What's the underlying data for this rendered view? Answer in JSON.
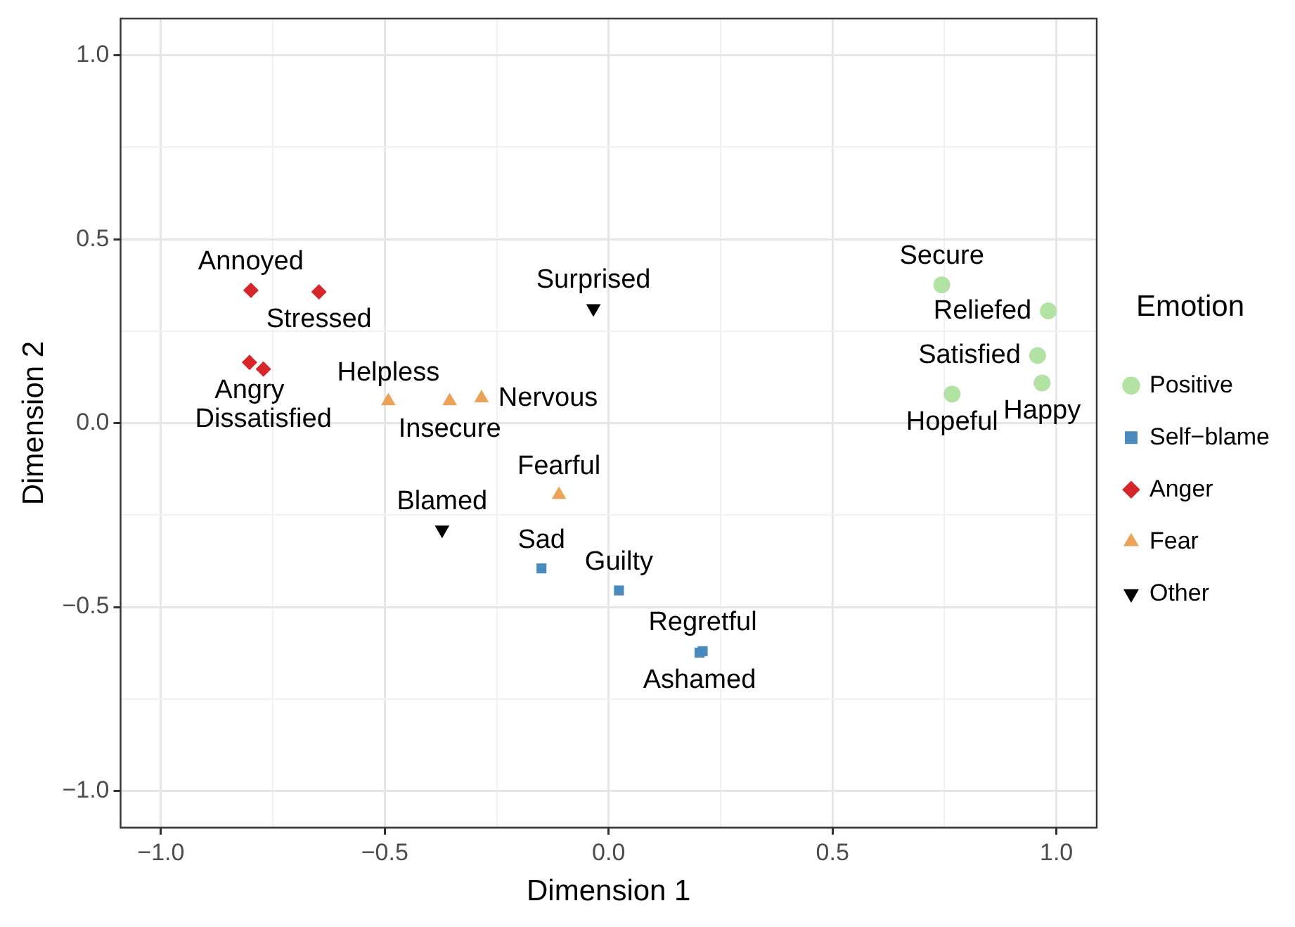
{
  "chart_data": {
    "type": "scatter",
    "xlabel": "Dimension 1",
    "ylabel": "Dimension 2",
    "legend_title": "Emotion",
    "legend": "right",
    "xlim": [
      -1.09,
      1.09
    ],
    "ylim": [
      -1.1,
      1.1
    ],
    "xticks": [
      {
        "value": -1,
        "label": "−1.0"
      },
      {
        "value": -0.5,
        "label": "−0.5"
      },
      {
        "value": 0,
        "label": "0.0"
      },
      {
        "value": 0.5,
        "label": "0.5"
      },
      {
        "value": 1,
        "label": "1.0"
      }
    ],
    "yticks": [
      {
        "value": -1,
        "label": "−1.0"
      },
      {
        "value": -0.5,
        "label": "−0.5"
      },
      {
        "value": 0,
        "label": "0.0"
      },
      {
        "value": 0.5,
        "label": "0.5"
      },
      {
        "value": 1,
        "label": "1.0"
      }
    ],
    "grid": true,
    "series": [
      {
        "name": "Positive",
        "color": "#b2e2a4",
        "marker": "circle",
        "x": [
          0.744,
          0.982,
          0.958,
          0.968,
          0.767
        ],
        "values": [
          0.376,
          0.305,
          0.184,
          0.109,
          0.079
        ],
        "value_labels": [
          "Secure",
          "Reliefed",
          "Satisfied",
          "Happy",
          "Hopeful"
        ]
      },
      {
        "name": "Self−blame",
        "color": "#4a8bbf",
        "marker": "square",
        "x": [
          -0.15,
          0.023,
          0.21,
          0.203
        ],
        "values": [
          -0.395,
          -0.455,
          -0.62,
          -0.624
        ],
        "value_labels": [
          "Sad",
          "Guilty",
          "Regretful",
          "Ashamed"
        ]
      },
      {
        "name": "Anger",
        "color": "#d7262a",
        "marker": "diamond",
        "x": [
          -0.799,
          -0.647,
          -0.802,
          -0.771
        ],
        "values": [
          0.361,
          0.357,
          0.165,
          0.147
        ],
        "value_labels": [
          "Annoyed",
          "Stressed",
          "Angry",
          "Dissatisfied"
        ]
      },
      {
        "name": "Fear",
        "color": "#eba35a",
        "marker": "triangle",
        "x": [
          -0.492,
          -0.355,
          -0.284,
          -0.111
        ],
        "values": [
          0.06,
          0.06,
          0.068,
          -0.195
        ],
        "value_labels": [
          "Helpless",
          "Insecure",
          "Nervous",
          "Fearful"
        ]
      },
      {
        "name": "Other",
        "color": "#000000",
        "marker": "triangle_down",
        "x": [
          -0.034,
          -0.372
        ],
        "values": [
          0.312,
          -0.29
        ],
        "value_labels": [
          "Surprised",
          "Blamed"
        ]
      }
    ]
  }
}
